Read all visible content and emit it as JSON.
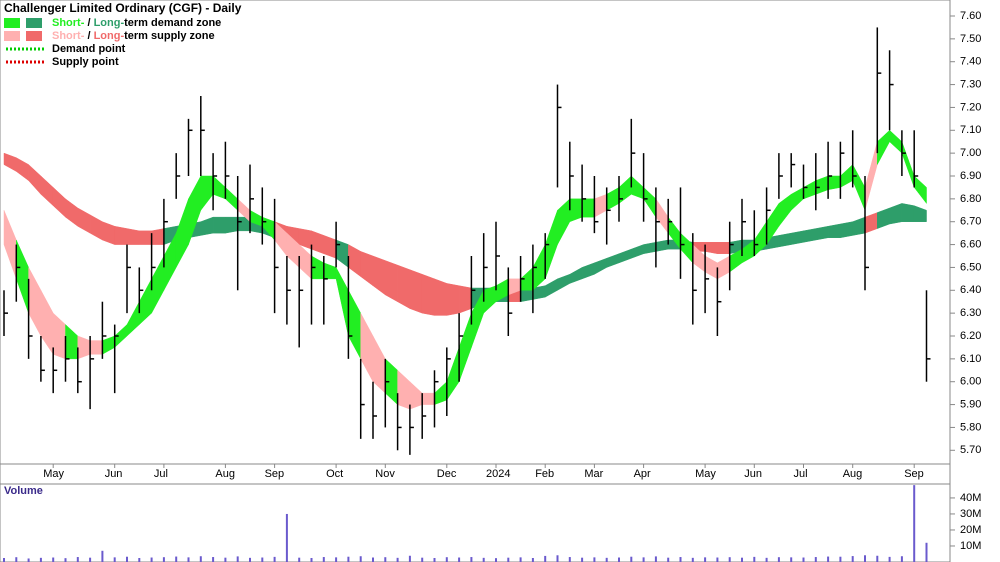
{
  "chart_data": {
    "type": "ohlc",
    "title": "Challenger Limited Ordinary (CGF) - Daily",
    "legend": [
      {
        "short": "Short-",
        "sep": " / ",
        "long": "Long-",
        "text": "term demand zone",
        "colors": [
          "#22ee22",
          "#2e9e6a"
        ]
      },
      {
        "short": "Short-",
        "sep": " / ",
        "long": "Long-",
        "text": "term supply zone",
        "colors": [
          "#ffb0b0",
          "#f06a6a"
        ]
      },
      {
        "text": "Demand point",
        "color": "#00cc00"
      },
      {
        "text": "Supply point",
        "color": "#dd0000"
      }
    ],
    "categories": [
      null,
      null,
      null,
      null,
      "May",
      null,
      null,
      null,
      null,
      "Jun",
      null,
      null,
      null,
      "Jul",
      null,
      null,
      null,
      null,
      "Aug",
      null,
      null,
      null,
      "Sep",
      null,
      null,
      null,
      null,
      "Oct",
      null,
      null,
      null,
      "Nov",
      null,
      null,
      null,
      null,
      "Dec",
      null,
      null,
      null,
      "2024",
      null,
      null,
      null,
      "Feb",
      null,
      null,
      null,
      "Mar",
      null,
      null,
      null,
      "Apr",
      null,
      null,
      null,
      null,
      "May",
      null,
      null,
      null,
      "Jun",
      null,
      null,
      null,
      "Jul",
      null,
      null,
      null,
      "Aug",
      null,
      null,
      null,
      null,
      "Sep",
      null
    ],
    "series": {
      "high": [
        6.4,
        6.6,
        6.45,
        6.2,
        6.15,
        6.2,
        6.15,
        6.2,
        6.35,
        6.25,
        6.6,
        6.5,
        6.65,
        6.8,
        7.0,
        7.15,
        7.25,
        7.0,
        7.05,
        6.9,
        6.95,
        6.85,
        6.8,
        6.55,
        6.55,
        6.6,
        6.55,
        6.7,
        6.55,
        6.1,
        6.0,
        6.1,
        5.95,
        5.9,
        5.95,
        6.05,
        6.15,
        6.3,
        6.55,
        6.65,
        6.7,
        6.5,
        6.55,
        6.6,
        6.65,
        7.3,
        7.05,
        6.95,
        6.9,
        6.85,
        6.9,
        7.15,
        7.0,
        6.85,
        6.8,
        6.85,
        6.65,
        6.6,
        6.5,
        6.7,
        6.8,
        6.75,
        6.85,
        7.0,
        7.0,
        6.95,
        7.0,
        7.05,
        7.05,
        7.1,
        6.9,
        7.55,
        7.45,
        7.1,
        7.1,
        6.4
      ],
      "low": [
        6.2,
        6.35,
        6.1,
        6.0,
        5.95,
        6.0,
        5.95,
        5.88,
        6.1,
        5.95,
        6.3,
        6.3,
        6.4,
        6.5,
        6.8,
        6.9,
        6.9,
        6.75,
        6.8,
        6.4,
        6.65,
        6.6,
        6.3,
        6.25,
        6.15,
        6.25,
        6.25,
        6.5,
        6.1,
        5.75,
        5.75,
        5.8,
        5.7,
        5.68,
        5.75,
        5.8,
        5.85,
        6.0,
        6.25,
        6.35,
        6.4,
        6.2,
        6.35,
        6.3,
        6.45,
        6.85,
        6.75,
        6.7,
        6.65,
        6.6,
        6.7,
        6.85,
        6.7,
        6.5,
        6.6,
        6.45,
        6.25,
        6.3,
        6.2,
        6.4,
        6.55,
        6.55,
        6.6,
        6.8,
        6.85,
        6.8,
        6.75,
        6.8,
        6.8,
        6.85,
        6.4,
        7.0,
        7.1,
        6.9,
        6.85,
        6.0
      ],
      "close": [
        6.3,
        6.5,
        6.2,
        6.05,
        6.05,
        6.1,
        6.0,
        6.1,
        6.2,
        6.2,
        6.5,
        6.4,
        6.5,
        6.7,
        6.9,
        7.1,
        7.1,
        6.9,
        6.9,
        6.7,
        6.8,
        6.7,
        6.5,
        6.4,
        6.4,
        6.5,
        6.45,
        6.6,
        6.2,
        5.9,
        5.85,
        6.0,
        5.8,
        5.8,
        5.85,
        6.0,
        6.1,
        6.2,
        6.4,
        6.5,
        6.55,
        6.3,
        6.45,
        6.5,
        6.6,
        7.2,
        6.9,
        6.8,
        6.7,
        6.75,
        6.8,
        7.0,
        6.8,
        6.7,
        6.7,
        6.6,
        6.4,
        6.45,
        6.35,
        6.6,
        6.7,
        6.6,
        6.75,
        6.9,
        6.95,
        6.85,
        6.85,
        6.9,
        7.0,
        6.9,
        6.5,
        7.35,
        7.3,
        7.0,
        6.9,
        6.1
      ]
    },
    "short_zone": {
      "upper": [
        6.75,
        6.62,
        6.5,
        6.4,
        6.3,
        6.25,
        6.2,
        6.18,
        6.18,
        6.2,
        6.25,
        6.35,
        6.45,
        6.55,
        6.65,
        6.8,
        6.9,
        6.9,
        6.85,
        6.8,
        6.75,
        6.72,
        6.7,
        6.65,
        6.6,
        6.55,
        6.52,
        6.5,
        6.4,
        6.3,
        6.2,
        6.1,
        6.05,
        6.0,
        5.95,
        5.95,
        6.0,
        6.15,
        6.3,
        6.4,
        6.42,
        6.45,
        6.45,
        6.5,
        6.6,
        6.75,
        6.8,
        6.8,
        6.8,
        6.82,
        6.85,
        6.9,
        6.85,
        6.8,
        6.72,
        6.65,
        6.6,
        6.55,
        6.52,
        6.55,
        6.58,
        6.62,
        6.7,
        6.78,
        6.82,
        6.85,
        6.88,
        6.9,
        6.9,
        6.95,
        6.85,
        7.05,
        7.1,
        7.05,
        6.9,
        6.85
      ],
      "lower": [
        6.6,
        6.45,
        6.3,
        6.2,
        6.12,
        6.1,
        6.1,
        6.12,
        6.12,
        6.15,
        6.2,
        6.25,
        6.3,
        6.4,
        6.5,
        6.6,
        6.75,
        6.82,
        6.8,
        6.75,
        6.7,
        6.68,
        6.62,
        6.55,
        6.5,
        6.45,
        6.45,
        6.45,
        6.2,
        6.1,
        6.0,
        5.95,
        5.9,
        5.88,
        5.9,
        5.9,
        5.92,
        6.0,
        6.15,
        6.3,
        6.35,
        6.38,
        6.4,
        6.4,
        6.45,
        6.6,
        6.7,
        6.72,
        6.72,
        6.75,
        6.78,
        6.82,
        6.8,
        6.72,
        6.65,
        6.58,
        6.52,
        6.48,
        6.45,
        6.48,
        6.52,
        6.55,
        6.6,
        6.68,
        6.75,
        6.8,
        6.82,
        6.84,
        6.85,
        6.88,
        6.75,
        6.95,
        7.05,
        7.0,
        6.85,
        6.78
      ]
    },
    "long_zone": {
      "upper": [
        7.0,
        6.98,
        6.95,
        6.9,
        6.85,
        6.8,
        6.76,
        6.73,
        6.7,
        6.68,
        6.67,
        6.66,
        6.66,
        6.67,
        6.68,
        6.69,
        6.7,
        6.72,
        6.72,
        6.72,
        6.72,
        6.71,
        6.7,
        6.68,
        6.67,
        6.66,
        6.64,
        6.62,
        6.6,
        6.57,
        6.55,
        6.53,
        6.51,
        6.49,
        6.47,
        6.45,
        6.43,
        6.42,
        6.41,
        6.41,
        6.41,
        6.41,
        6.41,
        6.41,
        6.42,
        6.45,
        6.47,
        6.5,
        6.52,
        6.54,
        6.56,
        6.58,
        6.6,
        6.61,
        6.62,
        6.62,
        6.61,
        6.61,
        6.61,
        6.61,
        6.62,
        6.62,
        6.63,
        6.64,
        6.65,
        6.66,
        6.67,
        6.68,
        6.69,
        6.7,
        6.72,
        6.74,
        6.76,
        6.78,
        6.77,
        6.75
      ],
      "lower": [
        6.95,
        6.92,
        6.88,
        6.82,
        6.77,
        6.72,
        6.68,
        6.65,
        6.62,
        6.6,
        6.6,
        6.6,
        6.6,
        6.6,
        6.62,
        6.63,
        6.64,
        6.65,
        6.65,
        6.66,
        6.66,
        6.65,
        6.63,
        6.61,
        6.6,
        6.58,
        6.56,
        6.54,
        6.5,
        6.46,
        6.42,
        6.38,
        6.35,
        6.32,
        6.3,
        6.29,
        6.29,
        6.3,
        6.32,
        6.34,
        6.35,
        6.35,
        6.35,
        6.36,
        6.37,
        6.4,
        6.43,
        6.45,
        6.47,
        6.5,
        6.52,
        6.54,
        6.56,
        6.57,
        6.58,
        6.58,
        6.57,
        6.57,
        6.56,
        6.56,
        6.57,
        6.57,
        6.58,
        6.59,
        6.6,
        6.61,
        6.62,
        6.63,
        6.63,
        6.64,
        6.65,
        6.67,
        6.69,
        6.7,
        6.7,
        6.7
      ]
    },
    "bar_color": "#000000",
    "ylim": [
      5.64,
      7.67
    ],
    "yticks": [
      {
        "value": 5.7,
        "label": "5.70"
      },
      {
        "value": 5.8,
        "label": "5.80"
      },
      {
        "value": 5.9,
        "label": "5.90"
      },
      {
        "value": 6.0,
        "label": "6.00"
      },
      {
        "value": 6.1,
        "label": "6.10"
      },
      {
        "value": 6.2,
        "label": "6.20"
      },
      {
        "value": 6.3,
        "label": "6.30"
      },
      {
        "value": 6.4,
        "label": "6.40"
      },
      {
        "value": 6.5,
        "label": "6.50"
      },
      {
        "value": 6.6,
        "label": "6.60"
      },
      {
        "value": 6.7,
        "label": "6.70"
      },
      {
        "value": 6.8,
        "label": "6.80"
      },
      {
        "value": 6.9,
        "label": "6.90"
      },
      {
        "value": 7.0,
        "label": "7.00"
      },
      {
        "value": 7.1,
        "label": "7.10"
      },
      {
        "value": 7.2,
        "label": "7.20"
      },
      {
        "value": 7.3,
        "label": "7.30"
      },
      {
        "value": 7.4,
        "label": "7.40"
      },
      {
        "value": 7.5,
        "label": "7.50"
      },
      {
        "value": 7.6,
        "label": "7.60"
      }
    ],
    "volume": {
      "label": "Volume",
      "color": "#6a5acd",
      "values": [
        2500000,
        3000000,
        2200000,
        2600000,
        2800000,
        2400000,
        3100000,
        2700000,
        7000000,
        2900000,
        3300000,
        2500000,
        2800000,
        3000000,
        3400000,
        2900000,
        3600000,
        3100000,
        2700000,
        3500000,
        2600000,
        2800000,
        3200000,
        30000000,
        2700000,
        2500000,
        3100000,
        2900000,
        3300000,
        3600000,
        2800000,
        3000000,
        2600000,
        3900000,
        2700000,
        2500000,
        3000000,
        2800000,
        3100000,
        2600000,
        2400000,
        2700000,
        2900000,
        2500000,
        3800000,
        4200000,
        3100000,
        2700000,
        2900000,
        2600000,
        2800000,
        3300000,
        2900000,
        3500000,
        2700000,
        3100000,
        2600000,
        2900000,
        2800000,
        3000000,
        2700000,
        3200000,
        2600000,
        3000000,
        2900000,
        2800000,
        3100000,
        3400000,
        3300000,
        3700000,
        4200000,
        3900000,
        3200000,
        3600000,
        48000000,
        12000000
      ],
      "ylim": [
        0,
        48700000
      ],
      "yticks": [
        {
          "value": 10000000,
          "label": "10M"
        },
        {
          "value": 20000000,
          "label": "20M"
        },
        {
          "value": 30000000,
          "label": "30M"
        },
        {
          "value": 40000000,
          "label": "40M"
        }
      ]
    }
  }
}
